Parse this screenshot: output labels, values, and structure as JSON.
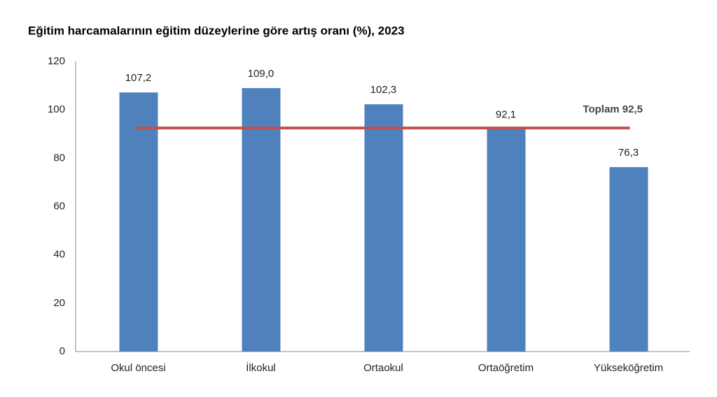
{
  "chart_data": {
    "type": "bar",
    "title": "Eğitim harcamalarının eğitim düzeylerine göre artış oranı (%), 2023",
    "categories": [
      "Okul öncesi",
      "İlkokul",
      "Ortaokul",
      "Ortaöğretim",
      "Yükseköğretim"
    ],
    "values": [
      107.2,
      109.0,
      102.3,
      92.1,
      76.3
    ],
    "value_labels": [
      "107,2",
      "109,0",
      "102,3",
      "92,1",
      "76,3"
    ],
    "color": "#4f81bd",
    "reference_line": {
      "value": 92.5,
      "label": "Toplam 92,5",
      "color": "#c0504d"
    },
    "ylim": [
      0,
      120
    ],
    "yticks": [
      0,
      20,
      40,
      60,
      80,
      100,
      120
    ],
    "grid": false
  }
}
